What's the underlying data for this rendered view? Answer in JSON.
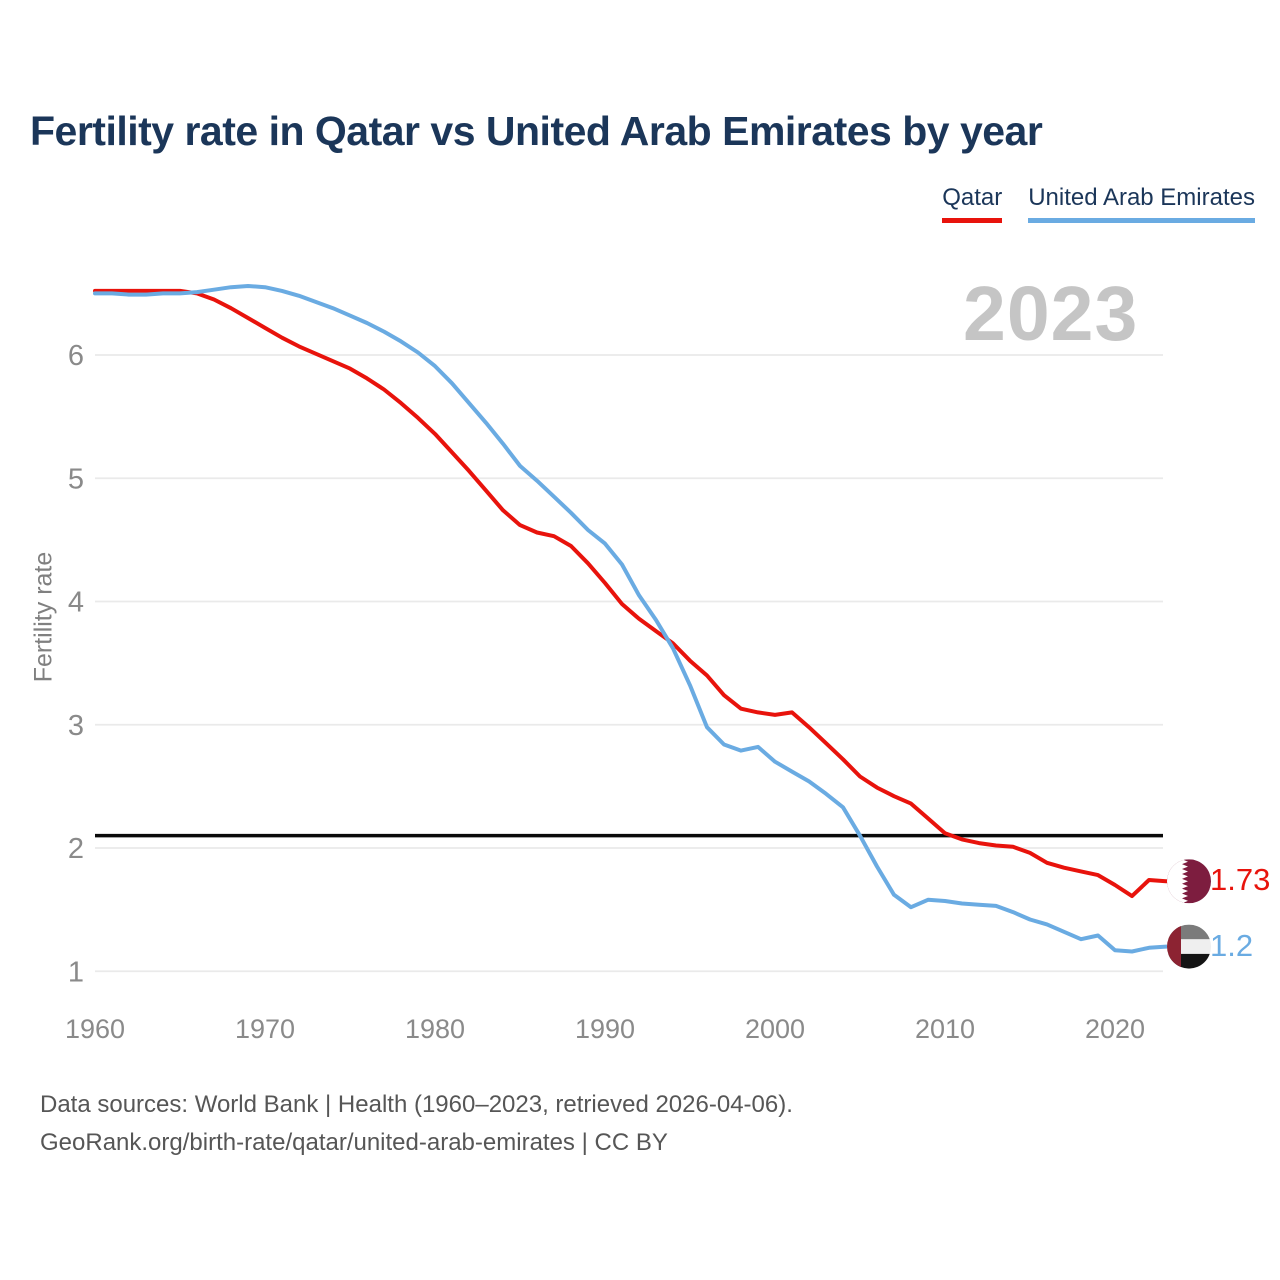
{
  "header": {
    "title": "Fertility rate in Qatar vs United Arab Emirates by year"
  },
  "legend": {
    "items": [
      {
        "label": "Qatar",
        "color": "#e8130c"
      },
      {
        "label": "United Arab Emirates",
        "color": "#6aabe2"
      }
    ]
  },
  "chart": {
    "watermark": "2023"
  },
  "colors": {
    "background": "#ffffff",
    "title_text": "#1b3659",
    "axis_text": "#8a8a8a",
    "gridline": "#eaeaea",
    "threshold": "#0a0a0a",
    "watermark": "#c5c5c5",
    "footer_text": "#565656"
  },
  "icons": {
    "qatar_flag": {
      "name": "qatar-flag-icon",
      "maroon": "#7d1d3f",
      "white": "#ffffff"
    },
    "uae_flag": {
      "name": "uae-flag-icon",
      "red": "#8c2332",
      "green_band": "#7b7b7b",
      "white_band": "#efefef",
      "black_band": "#141414"
    }
  },
  "chart_data": {
    "type": "line",
    "title": "Fertility rate in Qatar vs United Arab Emirates by year",
    "xlabel": "",
    "ylabel": "Fertility rate",
    "grid": "horizontal",
    "legend_position": "top-right",
    "ylim": [
      0.7,
      6.8
    ],
    "yticks": [
      1,
      2,
      3,
      4,
      5,
      6
    ],
    "xticks": [
      1960,
      1970,
      1980,
      1990,
      2000,
      2010,
      2020
    ],
    "threshold_line": {
      "value": 2.1
    },
    "years": [
      1960,
      1961,
      1962,
      1963,
      1964,
      1965,
      1966,
      1967,
      1968,
      1969,
      1970,
      1971,
      1972,
      1973,
      1974,
      1975,
      1976,
      1977,
      1978,
      1979,
      1980,
      1981,
      1982,
      1983,
      1984,
      1985,
      1986,
      1987,
      1988,
      1989,
      1990,
      1991,
      1992,
      1993,
      1994,
      1995,
      1996,
      1997,
      1998,
      1999,
      2000,
      2001,
      2002,
      2003,
      2004,
      2005,
      2006,
      2007,
      2008,
      2009,
      2010,
      2011,
      2012,
      2013,
      2014,
      2015,
      2016,
      2017,
      2018,
      2019,
      2020,
      2021,
      2022,
      2023
    ],
    "series": [
      {
        "name": "Qatar",
        "color": "#e8130c",
        "end_label": "1.73",
        "final_value": 1.73,
        "values": [
          6.52,
          6.52,
          6.52,
          6.52,
          6.52,
          6.52,
          6.5,
          6.45,
          6.38,
          6.3,
          6.22,
          6.14,
          6.07,
          6.01,
          5.95,
          5.89,
          5.81,
          5.72,
          5.61,
          5.49,
          5.36,
          5.21,
          5.06,
          4.9,
          4.74,
          4.62,
          4.56,
          4.53,
          4.45,
          4.31,
          4.15,
          3.98,
          3.86,
          3.76,
          3.66,
          3.52,
          3.4,
          3.24,
          3.13,
          3.1,
          3.08,
          3.1,
          2.98,
          2.85,
          2.72,
          2.58,
          2.49,
          2.42,
          2.36,
          2.24,
          2.12,
          2.07,
          2.04,
          2.02,
          2.01,
          1.96,
          1.88,
          1.84,
          1.81,
          1.78,
          1.7,
          1.61,
          1.74,
          1.73
        ]
      },
      {
        "name": "United Arab Emirates",
        "color": "#6aabe2",
        "end_label": "1.2",
        "final_value": 1.2,
        "values": [
          6.5,
          6.5,
          6.49,
          6.49,
          6.5,
          6.5,
          6.51,
          6.53,
          6.55,
          6.56,
          6.55,
          6.52,
          6.48,
          6.43,
          6.38,
          6.32,
          6.26,
          6.19,
          6.11,
          6.02,
          5.91,
          5.77,
          5.61,
          5.45,
          5.28,
          5.1,
          4.98,
          4.85,
          4.72,
          4.58,
          4.47,
          4.3,
          4.05,
          3.85,
          3.62,
          3.32,
          2.98,
          2.84,
          2.79,
          2.82,
          2.7,
          2.62,
          2.54,
          2.44,
          2.33,
          2.1,
          1.85,
          1.62,
          1.52,
          1.58,
          1.57,
          1.55,
          1.54,
          1.53,
          1.48,
          1.42,
          1.38,
          1.32,
          1.26,
          1.29,
          1.17,
          1.16,
          1.19,
          1.2
        ]
      }
    ]
  },
  "footer": {
    "line1": "Data sources: World Bank | Health (1960–2023, retrieved 2026-04-06).",
    "line2": "GeoRank.org/birth-rate/qatar/united-arab-emirates | CC BY"
  }
}
